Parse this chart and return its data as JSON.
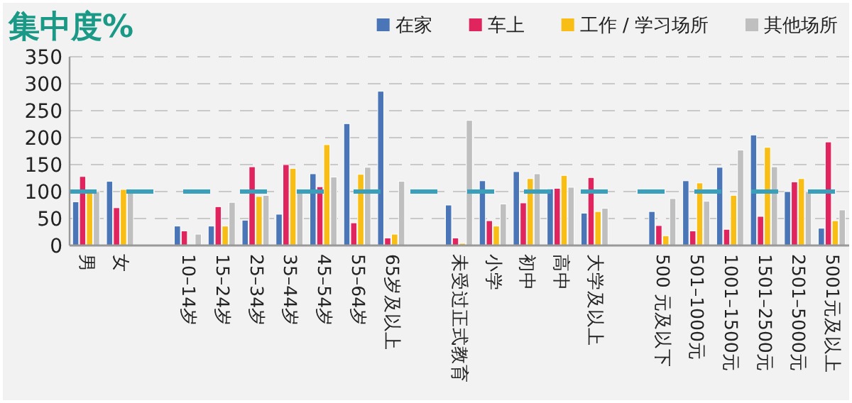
{
  "chart_data": {
    "type": "bar",
    "title": "集中度%",
    "categories": [
      "男",
      "女",
      null,
      "10–14岁",
      "15–24岁",
      "25–34岁",
      "35–44岁",
      "45–54岁",
      "55–64岁",
      "65岁及以上",
      null,
      "未受过正式教育",
      "小学",
      "初中",
      "高中",
      "大学及以上",
      null,
      "500 元及以下",
      "501–1000元",
      "1001–1500元",
      "1501–2500元",
      "2501–5000元",
      "5001元及以上"
    ],
    "series": [
      {
        "name": "在家",
        "color": "#4a76b8",
        "values": [
          81,
          119,
          null,
          36,
          36,
          47,
          58,
          133,
          226,
          286,
          null,
          75,
          120,
          137,
          105,
          60,
          null,
          63,
          120,
          145,
          205,
          100,
          32
        ]
      },
      {
        "name": "车上",
        "color": "#e0245e",
        "values": [
          128,
          70,
          null,
          27,
          72,
          146,
          150,
          109,
          42,
          14,
          null,
          14,
          46,
          79,
          106,
          126,
          null,
          37,
          27,
          30,
          54,
          118,
          192
        ]
      },
      {
        "name": "工作 / 学习场所",
        "color": "#f9be15",
        "values": [
          100,
          104,
          null,
          null,
          36,
          91,
          143,
          187,
          132,
          21,
          null,
          4,
          36,
          124,
          130,
          63,
          null,
          18,
          116,
          93,
          182,
          124,
          46
        ]
      },
      {
        "name": "其他场所",
        "color": "#bfbfbf",
        "values": [
          100,
          100,
          null,
          21,
          80,
          93,
          99,
          127,
          145,
          119,
          null,
          232,
          77,
          133,
          108,
          69,
          null,
          87,
          82,
          177,
          146,
          100,
          66
        ]
      }
    ],
    "ylim": [
      0,
      350
    ],
    "yticks": [
      0,
      50,
      100,
      150,
      200,
      250,
      300,
      350
    ],
    "grid": "y",
    "legend": "top right",
    "ref_lines": [
      {
        "axis": "y",
        "value": 100,
        "color": "#3a9fba",
        "line_style": "dashed"
      }
    ]
  }
}
